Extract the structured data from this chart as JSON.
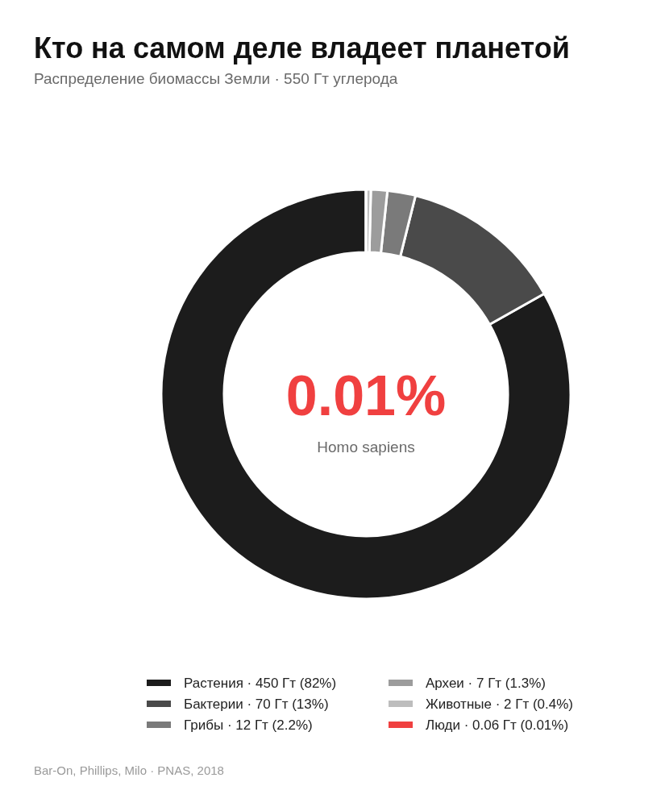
{
  "chart_data": {
    "type": "donut",
    "title": "Кто на самом деле владеет планетой",
    "subtitle": "Распределение биомассы Земли · 550 Гт углерода",
    "categories": [
      "Растения · 450 Гт (82%)",
      "Бактерии · 70 Гт (13%)",
      "Грибы · 12 Гт (2.2%)",
      "Археи · 7 Гт (1.3%)",
      "Животные · 2 Гт (0.4%)",
      "Люди · 0.06 Гт (0.01%)"
    ],
    "values": [
      450,
      70,
      12,
      7,
      2,
      0.06
    ],
    "colors": [
      "#1c1c1c",
      "#4a4a4a",
      "#7a7a7a",
      "#9c9c9c",
      "#bdbdbd",
      "#f04040"
    ],
    "legend": "bottom",
    "annotations": [
      "0.01%",
      "Homo sapiens",
      "Bar-On, Phillips, Milo · PNAS, 2018"
    ]
  }
}
